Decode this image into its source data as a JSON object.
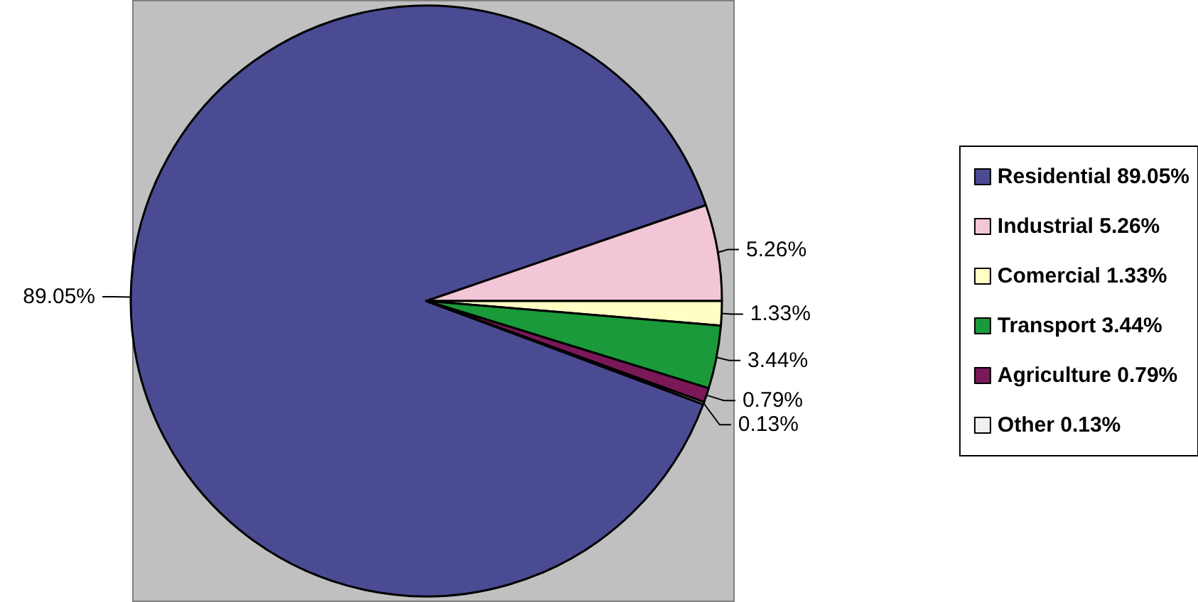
{
  "chart_data": {
    "type": "pie",
    "categories": [
      "Residential",
      "Industrial",
      "Comercial",
      "Transport",
      "Agriculture",
      "Other"
    ],
    "values": [
      89.05,
      5.26,
      1.33,
      3.44,
      0.79,
      0.13
    ],
    "value_labels": [
      "89.05%",
      "5.26%",
      "1.33%",
      "3.44%",
      "0.79%",
      "0.13%"
    ],
    "colors": [
      "#4b4b93",
      "#f2c6d6",
      "#ffffc4",
      "#1a9a3a",
      "#7a1858",
      "#f0f0f0"
    ],
    "legend": "right"
  }
}
